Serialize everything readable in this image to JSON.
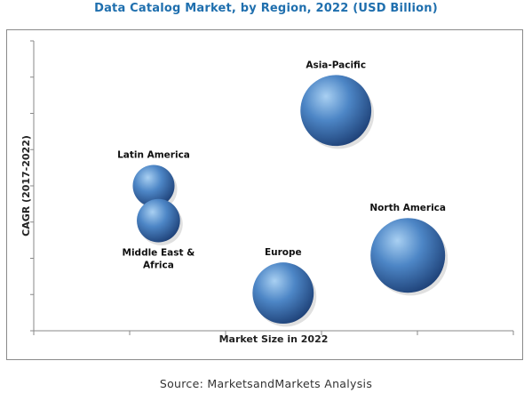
{
  "title": "Data Catalog Market, by Region, 2022 (USD Billion)",
  "source": "Source: MarketsandMarkets Analysis",
  "colors": {
    "title": "#1f6fae",
    "bubble_highlight": "#a9d0f2",
    "bubble_mid": "#4d86c6",
    "bubble_dark": "#1c3e74",
    "axis": "#888888"
  },
  "chart_data": {
    "type": "scatter",
    "title": "Data Catalog Market, by Region, 2022 (USD Billion)",
    "xlabel": "Market Size in 2022",
    "ylabel": "CAGR (2017-2022)",
    "x_ticks": 5,
    "y_ticks": 8,
    "grid": false,
    "bubbles": [
      {
        "label": "Asia-Pacific",
        "label_position": "top",
        "x": 0.63,
        "y": 0.76,
        "size": 0.95
      },
      {
        "label": "North America",
        "label_position": "top-right",
        "x": 0.78,
        "y": 0.26,
        "size": 1.0
      },
      {
        "label": "Latin America",
        "label_position": "top",
        "x": 0.25,
        "y": 0.5,
        "size": 0.56
      },
      {
        "label": "Middle East & Africa",
        "label_position": "bottom",
        "x": 0.26,
        "y": 0.38,
        "size": 0.58
      },
      {
        "label": "Europe",
        "label_position": "top",
        "x": 0.52,
        "y": 0.13,
        "size": 0.82
      }
    ]
  }
}
